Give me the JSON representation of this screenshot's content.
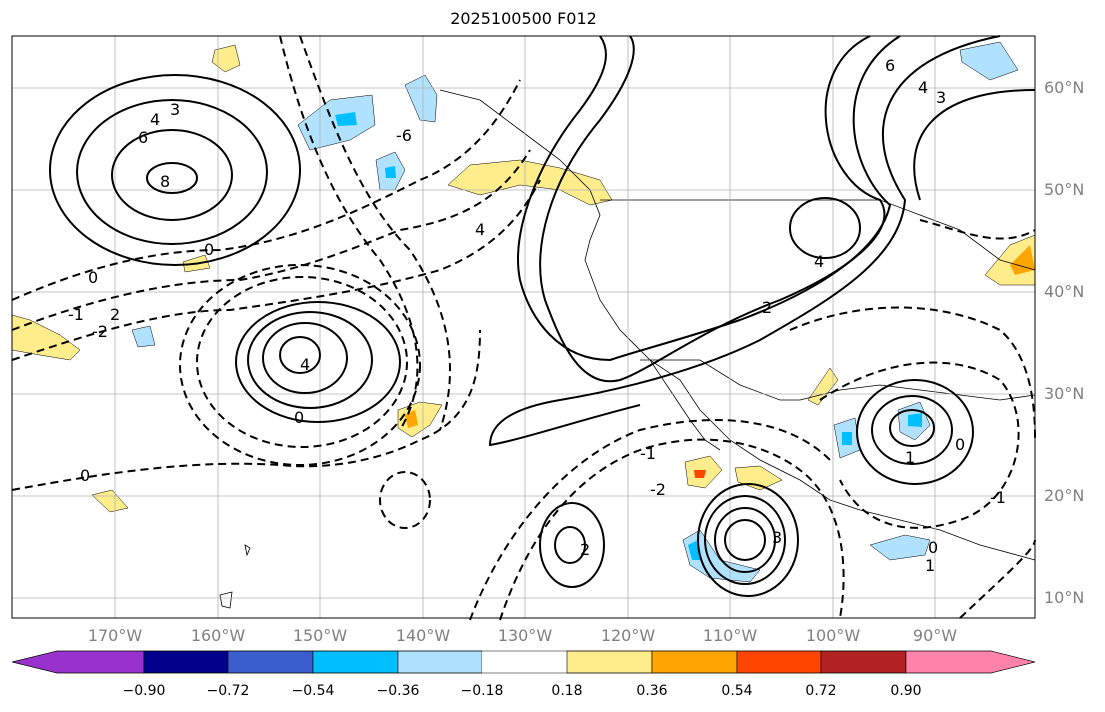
{
  "title": "2025100500 F012",
  "lat_labels": [
    "60°N",
    "50°N",
    "40°N",
    "30°N",
    "20°N",
    "10°N"
  ],
  "lon_labels": [
    "170°W",
    "160°W",
    "150°W",
    "140°W",
    "130°W",
    "120°W",
    "110°W",
    "100°W",
    "90°W"
  ],
  "colorbar": {
    "ticks": [
      "−0.90",
      "−0.72",
      "−0.54",
      "−0.36",
      "−0.18",
      "0.18",
      "0.36",
      "0.54",
      "0.72",
      "0.90"
    ],
    "colors": [
      "#9932cc",
      "#00008b",
      "#3a5fcd",
      "#00bfff",
      "#b0e2ff",
      "#ffffff",
      "#ffec8b",
      "#ffa500",
      "#ff4500",
      "#b22222",
      "#ff82ab"
    ]
  },
  "contour_labels": [
    "4",
    "3",
    "6",
    "8",
    "6",
    "4",
    "3",
    "0",
    "-1",
    "2",
    "-2",
    "4",
    "0",
    "4",
    "2",
    "-6",
    "4",
    "0",
    "1",
    "0",
    "-1",
    "-2",
    "0",
    "2",
    "3",
    "0",
    "1",
    "-1"
  ]
}
